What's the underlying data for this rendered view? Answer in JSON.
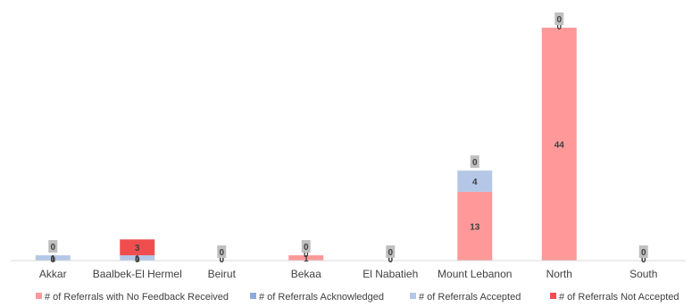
{
  "chart_data": {
    "type": "bar",
    "stacked": true,
    "categories": [
      "Akkar",
      "Baalbek-El Hermel",
      "Beirut",
      "Bekaa",
      "El Nabatieh",
      "Mount Lebanon",
      "North",
      "South"
    ],
    "series": [
      {
        "name": "# of Referrals with No Feedback Received",
        "color": "#FF9999",
        "values": [
          0,
          0,
          0,
          1,
          0,
          13,
          44,
          0
        ]
      },
      {
        "name": "# of Referrals Acknowledged",
        "color": "#8EA9DB",
        "values": [
          0,
          0,
          0,
          0,
          0,
          0,
          0,
          0
        ]
      },
      {
        "name": "# of Referrals Accepted",
        "color": "#B4C7E7",
        "values": [
          1,
          1,
          0,
          0,
          0,
          4,
          0,
          0
        ]
      },
      {
        "name": "# of Referrals Not Accepted",
        "color": "#F04E4E",
        "values": [
          0,
          3,
          0,
          0,
          0,
          0,
          0,
          0
        ]
      }
    ],
    "data_label_color": "#404040",
    "total_label_bg": "#BFBFBF",
    "axis_color": "#D9D9D9",
    "ylim": [
      0,
      44
    ],
    "grid": false,
    "legend_position": "bottom"
  }
}
